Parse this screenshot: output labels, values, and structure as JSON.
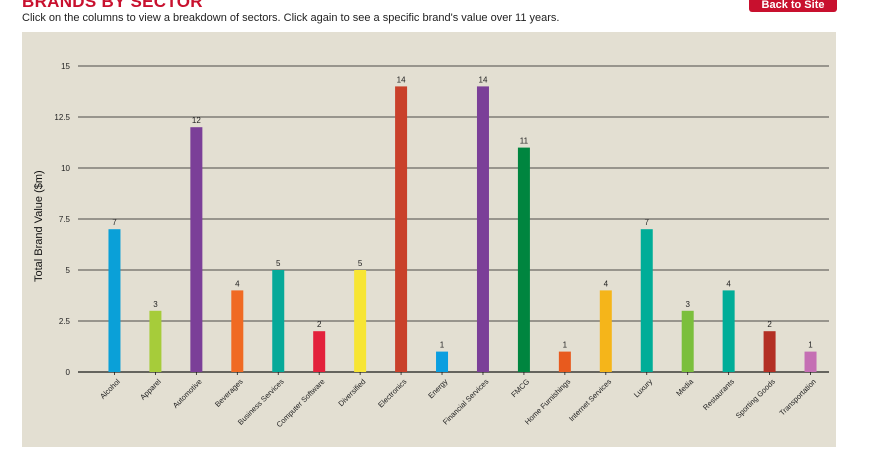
{
  "header": {
    "title": "BRANDS BY SECTOR",
    "subtitle": "Click on the columns to view a breakdown of sectors. Click again to see a specific brand's value over 11 years.",
    "back_button_label": "Back to Site"
  },
  "colors": {
    "brand_red": "#c8102e",
    "panel_bg": "#e3dfd2"
  },
  "chart_data": {
    "type": "bar",
    "title": "BRANDS BY SECTOR",
    "xlabel": "",
    "ylabel": "Total Brand Value ($m)",
    "ylim": [
      0,
      15
    ],
    "yticks": [
      0,
      2.5,
      5,
      7.5,
      10,
      12.5,
      15
    ],
    "ytick_labels": [
      "0",
      "2.5",
      "5",
      "7.5",
      "10",
      "12.5",
      "15"
    ],
    "grid": true,
    "categories": [
      "Alcohol",
      "Apparel",
      "Automotive",
      "Beverages",
      "Business Services",
      "Computer Software",
      "Diversified",
      "Electronics",
      "Energy",
      "Financial Services",
      "FMCG",
      "Home Furnishings",
      "Internet Services",
      "Luxury",
      "Media",
      "Restaurants",
      "Sporting Goods",
      "Transportation"
    ],
    "values": [
      7,
      3,
      12,
      4,
      5,
      2,
      5,
      14,
      1,
      14,
      11,
      1,
      4,
      7,
      3,
      4,
      2,
      1
    ],
    "value_labels": [
      "7",
      "3",
      "12",
      "4",
      "5",
      "2",
      "5",
      "14",
      "1",
      "14",
      "11",
      "1",
      "4",
      "7",
      "3",
      "4",
      "2",
      "1"
    ],
    "bar_colors": [
      "#0aa0d8",
      "#a6cc3a",
      "#7b3f98",
      "#f06a23",
      "#06a999",
      "#e3213b",
      "#f7e534",
      "#c9402a",
      "#0a9ee0",
      "#7b3f98",
      "#00853f",
      "#e85a1e",
      "#f5b51a",
      "#00ad98",
      "#7bbf3c",
      "#00ad98",
      "#b32f24",
      "#c56fb4"
    ]
  }
}
